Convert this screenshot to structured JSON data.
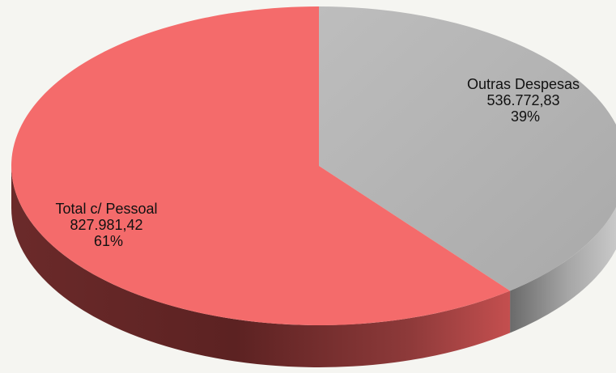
{
  "chart_data": {
    "type": "pie",
    "style": "3d",
    "slices": [
      {
        "name": "Outras Despesas",
        "value": 536772.83,
        "value_label": "536.772,83",
        "percent": 39,
        "percent_label": "39%",
        "color": "#b4b4b4"
      },
      {
        "name": "Total c/ Pessoal",
        "value": 827981.42,
        "value_label": "827.981,42",
        "percent": 61,
        "percent_label": "61%",
        "color": "#f46b6b"
      }
    ],
    "title": "",
    "legend": "none"
  }
}
